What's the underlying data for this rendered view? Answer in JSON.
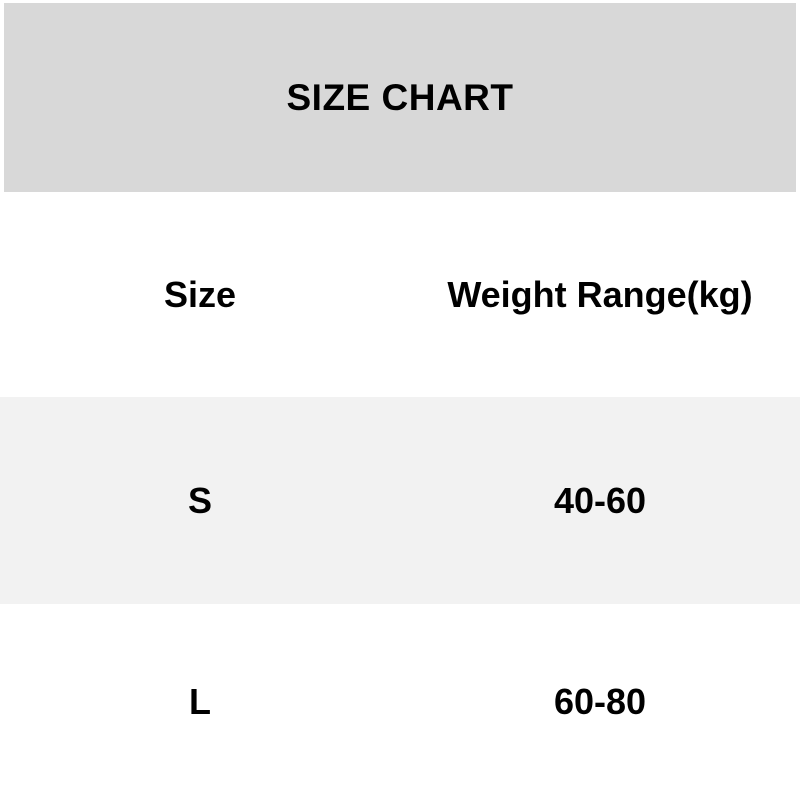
{
  "title": "SIZE CHART",
  "colors": {
    "page_bg": "#ffffff",
    "header_bg": "#d8d8d8",
    "row_alt_bg": "#f2f2f2",
    "text": "#000000"
  },
  "table": {
    "columns": [
      {
        "label": "Size"
      },
      {
        "label": "Weight Range(kg)"
      }
    ],
    "rows": [
      {
        "size": "S",
        "weight_range": "40-60"
      },
      {
        "size": "L",
        "weight_range": "60-80"
      }
    ]
  },
  "chart_data": {
    "type": "table",
    "title": "SIZE CHART",
    "columns": [
      "Size",
      "Weight Range(kg)"
    ],
    "rows": [
      [
        "S",
        "40-60"
      ],
      [
        "L",
        "60-80"
      ]
    ],
    "layout": {
      "header_banner": "gray band, title centered",
      "row_striping": "alternating white / light gray",
      "column_alignment": "centered"
    }
  }
}
